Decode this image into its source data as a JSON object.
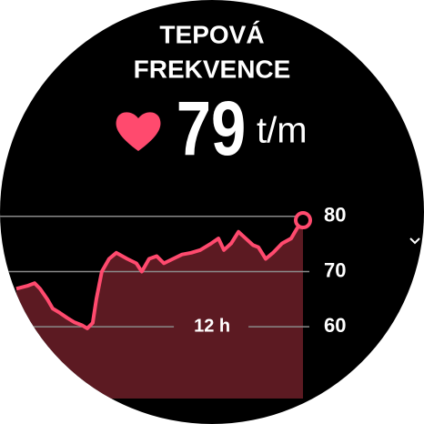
{
  "header": {
    "title_line1": "TEPOVÁ",
    "title_line2": "FREKVENCE"
  },
  "current": {
    "value": 79,
    "unit": "t/m"
  },
  "chart_data": {
    "type": "line",
    "color": "#ff4a6e",
    "area_color": "#5c1a22",
    "x": [
      5.54,
      5.9,
      6.14,
      6.32,
      6.56,
      6.74,
      6.98,
      7.22,
      7.46,
      7.7,
      7.88,
      8.06,
      8.18,
      8.36,
      8.6,
      8.84,
      9.2,
      9.5,
      9.68,
      9.92,
      10.17,
      10.41,
      10.71,
      11.01,
      11.31,
      11.61,
      11.97,
      12.21,
      12.39,
      12.63,
      12.87,
      13.11,
      13.35,
      13.53,
      13.77,
      14.01,
      14.31,
      14.61,
      14.79,
      15
    ],
    "values": [
      66.9,
      67.4,
      67.9,
      66.9,
      65,
      63.3,
      62.5,
      61.6,
      60.8,
      60.3,
      59.7,
      60.7,
      65,
      70,
      72.3,
      73.4,
      72.3,
      71.5,
      70,
      72.3,
      72.8,
      71.5,
      72.3,
      73.1,
      73.4,
      73.9,
      75.1,
      76,
      73.9,
      75.1,
      77.2,
      76,
      74.8,
      74.4,
      72.3,
      73.4,
      75.1,
      76,
      77.7,
      79.3
    ],
    "xlim": [
      5,
      15
    ],
    "xticks": [
      {
        "value": 12,
        "label": "12 h"
      }
    ],
    "ylim": [
      47,
      86
    ],
    "yticks": [
      60,
      70,
      80
    ],
    "grid": true
  }
}
